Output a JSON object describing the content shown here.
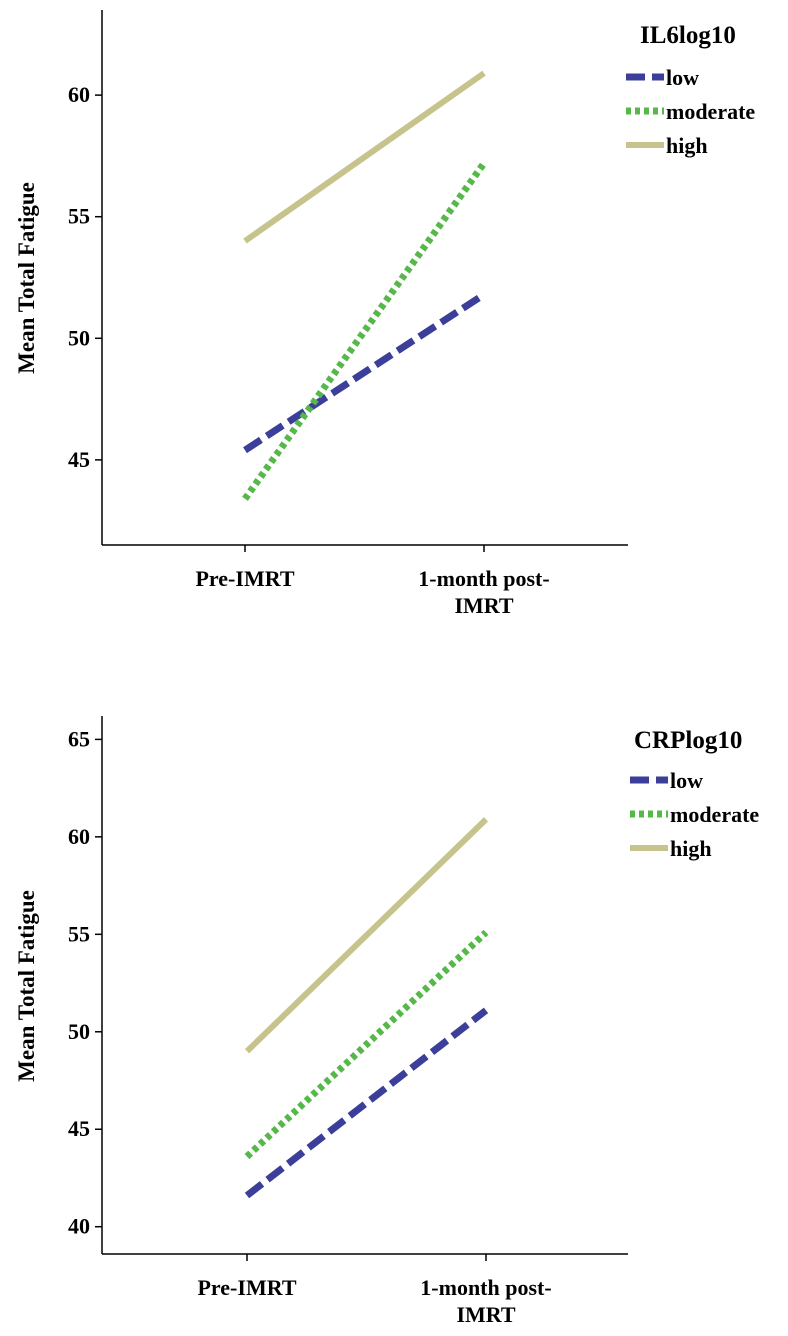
{
  "colors": {
    "low": "#3b3f99",
    "moderate": "#55b848",
    "high": "#c7c38c",
    "axis": "#000000"
  },
  "chart_data": [
    {
      "type": "line",
      "title": "",
      "xlabel": "",
      "ylabel": "Mean Total Fatigue",
      "categories": [
        "Pre-IMRT",
        "1-month post-IMRT"
      ],
      "category_lines": [
        [
          "Pre-IMRT"
        ],
        [
          "1-month post-",
          "IMRT"
        ]
      ],
      "yticks": [
        45,
        50,
        55,
        60
      ],
      "ylim": [
        41.5,
        63.5
      ],
      "grid": false,
      "legend": {
        "title": "IL6log10",
        "position": "top-right"
      },
      "series": [
        {
          "name": "low",
          "style": "dashed",
          "values": [
            45.4,
            51.8
          ]
        },
        {
          "name": "moderate",
          "style": "dotted",
          "values": [
            43.4,
            57.2
          ]
        },
        {
          "name": "high",
          "style": "solid",
          "values": [
            54.0,
            60.9
          ]
        }
      ]
    },
    {
      "type": "line",
      "title": "",
      "xlabel": "",
      "ylabel": "Mean Total Fatigue",
      "categories": [
        "Pre-IMRT",
        "1-month post-IMRT"
      ],
      "category_lines": [
        [
          "Pre-IMRT"
        ],
        [
          "1-month post-",
          "IMRT"
        ]
      ],
      "yticks": [
        40,
        45,
        50,
        55,
        60,
        65
      ],
      "ylim": [
        38.6,
        66.2
      ],
      "grid": false,
      "legend": {
        "title": "CRPlog10",
        "position": "top-right"
      },
      "series": [
        {
          "name": "low",
          "style": "dashed",
          "values": [
            41.6,
            51.1
          ]
        },
        {
          "name": "moderate",
          "style": "dotted",
          "values": [
            43.6,
            55.1
          ]
        },
        {
          "name": "high",
          "style": "solid",
          "values": [
            49.0,
            60.9
          ]
        }
      ]
    }
  ]
}
